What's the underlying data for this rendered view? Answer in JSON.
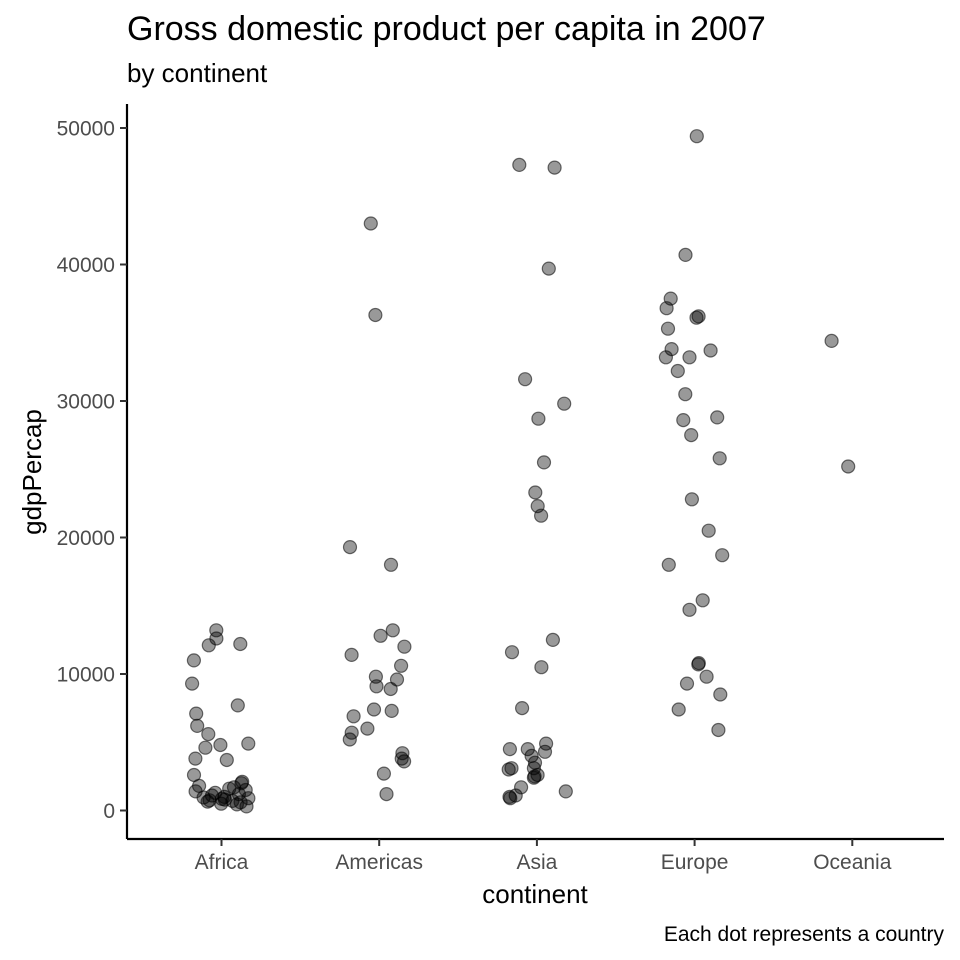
{
  "chart_data": {
    "type": "scatter",
    "title": "Gross domestic product per capita in 2007",
    "subtitle": "by continent",
    "xlabel": "continent",
    "ylabel": "gdpPercap",
    "caption": "Each dot represents a country",
    "categories": [
      "Africa",
      "Americas",
      "Asia",
      "Europe",
      "Oceania"
    ],
    "ylim": [
      0,
      50000
    ],
    "yticks": [
      0,
      10000,
      20000,
      30000,
      40000,
      50000
    ],
    "grid": false,
    "point_color": "#000000",
    "point_alpha": 0.4,
    "points": [
      {
        "category": "Africa",
        "y": 13200
      },
      {
        "category": "Africa",
        "y": 12600
      },
      {
        "category": "Africa",
        "y": 12200
      },
      {
        "category": "Africa",
        "y": 12100
      },
      {
        "category": "Africa",
        "y": 11000
      },
      {
        "category": "Africa",
        "y": 9300
      },
      {
        "category": "Africa",
        "y": 7700
      },
      {
        "category": "Africa",
        "y": 7100
      },
      {
        "category": "Africa",
        "y": 6200
      },
      {
        "category": "Africa",
        "y": 5600
      },
      {
        "category": "Africa",
        "y": 4900
      },
      {
        "category": "Africa",
        "y": 4800
      },
      {
        "category": "Africa",
        "y": 4600
      },
      {
        "category": "Africa",
        "y": 3800
      },
      {
        "category": "Africa",
        "y": 3700
      },
      {
        "category": "Africa",
        "y": 2600
      },
      {
        "category": "Africa",
        "y": 2100
      },
      {
        "category": "Africa",
        "y": 2000
      },
      {
        "category": "Africa",
        "y": 1800
      },
      {
        "category": "Africa",
        "y": 1700
      },
      {
        "category": "Africa",
        "y": 1600
      },
      {
        "category": "Africa",
        "y": 1500
      },
      {
        "category": "Africa",
        "y": 1400
      },
      {
        "category": "Africa",
        "y": 1300
      },
      {
        "category": "Africa",
        "y": 1200
      },
      {
        "category": "Africa",
        "y": 1100
      },
      {
        "category": "Africa",
        "y": 1000
      },
      {
        "category": "Africa",
        "y": 950
      },
      {
        "category": "Africa",
        "y": 900
      },
      {
        "category": "Africa",
        "y": 850
      },
      {
        "category": "Africa",
        "y": 800
      },
      {
        "category": "Africa",
        "y": 750
      },
      {
        "category": "Africa",
        "y": 700
      },
      {
        "category": "Africa",
        "y": 650
      },
      {
        "category": "Africa",
        "y": 600
      },
      {
        "category": "Africa",
        "y": 500
      },
      {
        "category": "Africa",
        "y": 450
      },
      {
        "category": "Africa",
        "y": 300
      },
      {
        "category": "Americas",
        "y": 43000
      },
      {
        "category": "Americas",
        "y": 36300
      },
      {
        "category": "Americas",
        "y": 19300
      },
      {
        "category": "Americas",
        "y": 18000
      },
      {
        "category": "Americas",
        "y": 13200
      },
      {
        "category": "Americas",
        "y": 12800
      },
      {
        "category": "Americas",
        "y": 12000
      },
      {
        "category": "Americas",
        "y": 11400
      },
      {
        "category": "Americas",
        "y": 10600
      },
      {
        "category": "Americas",
        "y": 9800
      },
      {
        "category": "Americas",
        "y": 9600
      },
      {
        "category": "Americas",
        "y": 9100
      },
      {
        "category": "Americas",
        "y": 8900
      },
      {
        "category": "Americas",
        "y": 7400
      },
      {
        "category": "Americas",
        "y": 7300
      },
      {
        "category": "Americas",
        "y": 6900
      },
      {
        "category": "Americas",
        "y": 6000
      },
      {
        "category": "Americas",
        "y": 5700
      },
      {
        "category": "Americas",
        "y": 5200
      },
      {
        "category": "Americas",
        "y": 4200
      },
      {
        "category": "Americas",
        "y": 3800
      },
      {
        "category": "Americas",
        "y": 3600
      },
      {
        "category": "Americas",
        "y": 2700
      },
      {
        "category": "Americas",
        "y": 1200
      },
      {
        "category": "Asia",
        "y": 47300
      },
      {
        "category": "Asia",
        "y": 47100
      },
      {
        "category": "Asia",
        "y": 39700
      },
      {
        "category": "Asia",
        "y": 31600
      },
      {
        "category": "Asia",
        "y": 29800
      },
      {
        "category": "Asia",
        "y": 28700
      },
      {
        "category": "Asia",
        "y": 25500
      },
      {
        "category": "Asia",
        "y": 23300
      },
      {
        "category": "Asia",
        "y": 22300
      },
      {
        "category": "Asia",
        "y": 21600
      },
      {
        "category": "Asia",
        "y": 12500
      },
      {
        "category": "Asia",
        "y": 11600
      },
      {
        "category": "Asia",
        "y": 10500
      },
      {
        "category": "Asia",
        "y": 7500
      },
      {
        "category": "Asia",
        "y": 4900
      },
      {
        "category": "Asia",
        "y": 4500
      },
      {
        "category": "Asia",
        "y": 4500
      },
      {
        "category": "Asia",
        "y": 4300
      },
      {
        "category": "Asia",
        "y": 4000
      },
      {
        "category": "Asia",
        "y": 3500
      },
      {
        "category": "Asia",
        "y": 3100
      },
      {
        "category": "Asia",
        "y": 3100
      },
      {
        "category": "Asia",
        "y": 3000
      },
      {
        "category": "Asia",
        "y": 2600
      },
      {
        "category": "Asia",
        "y": 2500
      },
      {
        "category": "Asia",
        "y": 2400
      },
      {
        "category": "Asia",
        "y": 1700
      },
      {
        "category": "Asia",
        "y": 1400
      },
      {
        "category": "Asia",
        "y": 1100
      },
      {
        "category": "Asia",
        "y": 1000
      },
      {
        "category": "Asia",
        "y": 900
      },
      {
        "category": "Europe",
        "y": 49400
      },
      {
        "category": "Europe",
        "y": 40700
      },
      {
        "category": "Europe",
        "y": 37500
      },
      {
        "category": "Europe",
        "y": 36800
      },
      {
        "category": "Europe",
        "y": 36200
      },
      {
        "category": "Europe",
        "y": 36100
      },
      {
        "category": "Europe",
        "y": 35300
      },
      {
        "category": "Europe",
        "y": 33800
      },
      {
        "category": "Europe",
        "y": 33700
      },
      {
        "category": "Europe",
        "y": 33200
      },
      {
        "category": "Europe",
        "y": 33200
      },
      {
        "category": "Europe",
        "y": 32200
      },
      {
        "category": "Europe",
        "y": 30500
      },
      {
        "category": "Europe",
        "y": 28800
      },
      {
        "category": "Europe",
        "y": 28600
      },
      {
        "category": "Europe",
        "y": 27500
      },
      {
        "category": "Europe",
        "y": 25800
      },
      {
        "category": "Europe",
        "y": 22800
      },
      {
        "category": "Europe",
        "y": 20500
      },
      {
        "category": "Europe",
        "y": 18700
      },
      {
        "category": "Europe",
        "y": 18000
      },
      {
        "category": "Europe",
        "y": 15400
      },
      {
        "category": "Europe",
        "y": 14700
      },
      {
        "category": "Europe",
        "y": 10800
      },
      {
        "category": "Europe",
        "y": 10700
      },
      {
        "category": "Europe",
        "y": 9800
      },
      {
        "category": "Europe",
        "y": 9300
      },
      {
        "category": "Europe",
        "y": 8500
      },
      {
        "category": "Europe",
        "y": 7400
      },
      {
        "category": "Europe",
        "y": 5900
      },
      {
        "category": "Oceania",
        "y": 34400
      },
      {
        "category": "Oceania",
        "y": 25200
      }
    ]
  }
}
